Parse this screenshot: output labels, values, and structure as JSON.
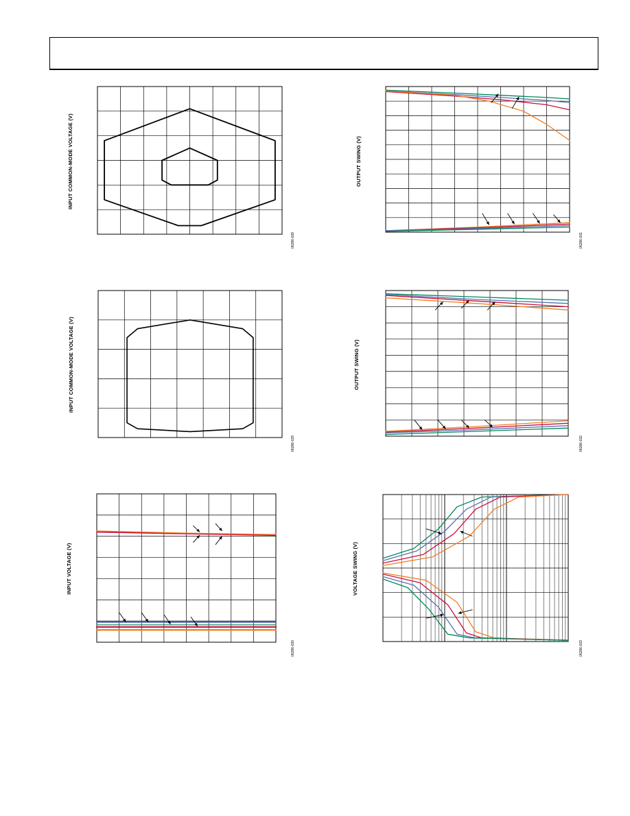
{
  "charts": [
    {
      "id": "c1",
      "type": "line",
      "ylabel": "INPUT COMMON-MODE VOLTAGE (V)",
      "fig_id": "06286-028",
      "grid": {
        "cols": 8,
        "rows": 6
      },
      "xlim": [
        0,
        8
      ],
      "ylim": [
        0,
        6
      ],
      "series": [
        {
          "color": "#000000",
          "width": 1.8,
          "points": [
            [
              0.3,
              3.8
            ],
            [
              4.0,
              5.1
            ],
            [
              7.7,
              3.8
            ],
            [
              7.7,
              1.4
            ],
            [
              4.5,
              0.35
            ],
            [
              3.5,
              0.35
            ],
            [
              0.3,
              1.4
            ],
            [
              0.3,
              3.8
            ]
          ]
        },
        {
          "color": "#000000",
          "width": 1.8,
          "points": [
            [
              2.8,
              3.0
            ],
            [
              4.0,
              3.5
            ],
            [
              5.2,
              3.0
            ],
            [
              5.2,
              2.2
            ],
            [
              4.8,
              2.0
            ],
            [
              3.2,
              2.0
            ],
            [
              2.8,
              2.2
            ],
            [
              2.8,
              3.0
            ]
          ]
        }
      ],
      "arrows": []
    },
    {
      "id": "c2",
      "type": "line",
      "ylabel": "OUTPUT SWING (V)",
      "fig_id": "06286-031",
      "grid": {
        "cols": 8,
        "rows": 10
      },
      "xlim": [
        0,
        8
      ],
      "ylim": [
        0,
        10
      ],
      "series": [
        {
          "color": "#00875a",
          "width": 1.3,
          "points": [
            [
              0,
              9.75
            ],
            [
              3,
              9.55
            ],
            [
              5,
              9.4
            ],
            [
              7,
              9.25
            ],
            [
              8,
              9.15
            ]
          ]
        },
        {
          "color": "#5b6fb0",
          "width": 1.3,
          "points": [
            [
              0,
              9.7
            ],
            [
              3,
              9.45
            ],
            [
              5,
              9.25
            ],
            [
              7,
              9.05
            ],
            [
              8,
              8.9
            ]
          ]
        },
        {
          "color": "#c8103c",
          "width": 1.3,
          "points": [
            [
              0,
              9.65
            ],
            [
              3,
              9.35
            ],
            [
              5,
              9.1
            ],
            [
              7,
              8.75
            ],
            [
              8,
              8.4
            ]
          ]
        },
        {
          "color": "#f07d22",
          "width": 1.3,
          "points": [
            [
              0,
              9.7
            ],
            [
              3,
              9.4
            ],
            [
              4.5,
              9.0
            ],
            [
              6,
              8.3
            ],
            [
              7,
              7.4
            ],
            [
              8,
              6.3
            ]
          ]
        },
        {
          "color": "#f07d22",
          "width": 1.3,
          "points": [
            [
              0,
              0.1
            ],
            [
              4,
              0.35
            ],
            [
              8,
              0.65
            ]
          ]
        },
        {
          "color": "#c8103c",
          "width": 1.3,
          "points": [
            [
              0,
              0.1
            ],
            [
              4,
              0.3
            ],
            [
              8,
              0.55
            ]
          ]
        },
        {
          "color": "#5b6fb0",
          "width": 1.3,
          "points": [
            [
              0,
              0.1
            ],
            [
              4,
              0.25
            ],
            [
              8,
              0.45
            ]
          ]
        },
        {
          "color": "#00875a",
          "width": 1.3,
          "points": [
            [
              0,
              0.05
            ],
            [
              4,
              0.2
            ],
            [
              8,
              0.35
            ]
          ]
        }
      ],
      "arrows": [
        [
          4.6,
          8.9,
          4.9,
          9.5
        ],
        [
          5.5,
          8.5,
          5.8,
          9.3
        ],
        [
          4.2,
          1.3,
          4.5,
          0.5
        ],
        [
          5.3,
          1.3,
          5.6,
          0.55
        ],
        [
          6.4,
          1.3,
          6.7,
          0.6
        ],
        [
          7.3,
          1.2,
          7.6,
          0.65
        ]
      ]
    },
    {
      "id": "c3",
      "type": "line",
      "ylabel": "INPUT COMMON-MODE VOLTAGE (V)",
      "fig_id": "06286-029",
      "grid": {
        "cols": 7,
        "rows": 5
      },
      "xlim": [
        0,
        7
      ],
      "ylim": [
        0,
        5
      ],
      "series": [
        {
          "color": "#000000",
          "width": 1.6,
          "points": [
            [
              1.1,
              3.4
            ],
            [
              1.5,
              3.7
            ],
            [
              3.5,
              4.0
            ],
            [
              5.5,
              3.7
            ],
            [
              5.9,
              3.4
            ],
            [
              5.9,
              0.5
            ],
            [
              5.5,
              0.3
            ],
            [
              3.5,
              0.2
            ],
            [
              1.5,
              0.3
            ],
            [
              1.1,
              0.5
            ],
            [
              1.1,
              3.4
            ]
          ]
        }
      ],
      "arrows": []
    },
    {
      "id": "c4",
      "type": "line",
      "ylabel": "OUTPUT SWING (V)",
      "fig_id": "06286-032",
      "grid": {
        "cols": 7,
        "rows": 9
      },
      "xlim": [
        0,
        7
      ],
      "ylim": [
        0,
        9
      ],
      "series": [
        {
          "color": "#00875a",
          "width": 1.3,
          "points": [
            [
              0,
              8.8
            ],
            [
              3.5,
              8.6
            ],
            [
              7,
              8.4
            ]
          ]
        },
        {
          "color": "#5b6fb0",
          "width": 1.3,
          "points": [
            [
              0,
              8.75
            ],
            [
              3.5,
              8.45
            ],
            [
              7,
              8.2
            ]
          ]
        },
        {
          "color": "#c8103c",
          "width": 1.3,
          "points": [
            [
              0,
              8.7
            ],
            [
              3.5,
              8.35
            ],
            [
              7,
              8.0
            ]
          ]
        },
        {
          "color": "#f07d22",
          "width": 1.3,
          "points": [
            [
              0,
              8.55
            ],
            [
              3.5,
              8.2
            ],
            [
              7,
              7.8
            ]
          ]
        },
        {
          "color": "#f07d22",
          "width": 1.3,
          "points": [
            [
              0,
              0.3
            ],
            [
              3.5,
              0.6
            ],
            [
              7,
              0.95
            ]
          ]
        },
        {
          "color": "#c8103c",
          "width": 1.3,
          "points": [
            [
              0,
              0.25
            ],
            [
              3.5,
              0.5
            ],
            [
              7,
              0.8
            ]
          ]
        },
        {
          "color": "#5b6fb0",
          "width": 1.3,
          "points": [
            [
              0,
              0.2
            ],
            [
              3.5,
              0.4
            ],
            [
              7,
              0.65
            ]
          ]
        },
        {
          "color": "#00875a",
          "width": 1.3,
          "points": [
            [
              0,
              0.1
            ],
            [
              3.5,
              0.3
            ],
            [
              7,
              0.5
            ]
          ]
        }
      ],
      "arrows": [
        [
          1.9,
          7.8,
          2.2,
          8.3
        ],
        [
          2.9,
          7.9,
          3.2,
          8.4
        ],
        [
          3.9,
          7.8,
          4.2,
          8.3
        ],
        [
          1.1,
          1.0,
          1.4,
          0.4
        ],
        [
          2.0,
          1.0,
          2.3,
          0.45
        ],
        [
          2.9,
          1.0,
          3.2,
          0.5
        ],
        [
          3.8,
          1.0,
          4.1,
          0.55
        ]
      ]
    },
    {
      "id": "c5",
      "type": "line",
      "ylabel": "INPUT VOLTAGE (V)",
      "fig_id": "06286-030",
      "grid": {
        "cols": 8,
        "rows": 7
      },
      "xlim": [
        0,
        8
      ],
      "ylim": [
        0,
        7
      ],
      "series": [
        {
          "color": "#c8103c",
          "width": 1.8,
          "points": [
            [
              0,
              5.2
            ],
            [
              4,
              5.12
            ],
            [
              8,
              5.05
            ]
          ]
        },
        {
          "color": "#f07d22",
          "width": 1.2,
          "points": [
            [
              0,
              5.25
            ],
            [
              4,
              5.15
            ],
            [
              8,
              5.08
            ]
          ]
        },
        {
          "color": "#5b6fb0",
          "width": 2.2,
          "points": [
            [
              0,
              0.95
            ],
            [
              8,
              0.95
            ]
          ]
        },
        {
          "color": "#00875a",
          "width": 1.2,
          "points": [
            [
              0,
              0.82
            ],
            [
              8,
              0.82
            ]
          ]
        },
        {
          "color": "#c8103c",
          "width": 2.2,
          "points": [
            [
              0,
              0.72
            ],
            [
              8,
              0.72
            ]
          ]
        },
        {
          "color": "#f07d22",
          "width": 2.2,
          "points": [
            [
              0,
              0.58
            ],
            [
              8,
              0.58
            ]
          ]
        }
      ],
      "arrows": [
        [
          4.3,
          5.5,
          4.6,
          5.2
        ],
        [
          5.3,
          5.6,
          5.6,
          5.25
        ],
        [
          4.3,
          4.7,
          4.6,
          5.05
        ],
        [
          5.3,
          4.6,
          5.6,
          5.0
        ],
        [
          1.0,
          1.4,
          1.3,
          0.95
        ],
        [
          2.0,
          1.4,
          2.3,
          0.95
        ],
        [
          3.0,
          1.3,
          3.3,
          0.85
        ],
        [
          4.2,
          1.2,
          4.5,
          0.75
        ]
      ]
    },
    {
      "id": "c6",
      "type": "line",
      "ylabel": "VOLTAGE SWING (V)",
      "fig_id": "06286-033",
      "grid": {
        "cols": 0,
        "rows": 6,
        "xlog": true,
        "decades": 3
      },
      "xlim": [
        0,
        3
      ],
      "ylim": [
        0,
        6
      ],
      "series": [
        {
          "color": "#00875a",
          "width": 1.3,
          "points": [
            [
              0,
              3.4
            ],
            [
              0.5,
              3.8
            ],
            [
              0.9,
              4.6
            ],
            [
              1.2,
              5.5
            ],
            [
              1.6,
              5.9
            ],
            [
              3,
              6.0
            ]
          ]
        },
        {
          "color": "#5b6fb0",
          "width": 1.3,
          "points": [
            [
              0,
              3.3
            ],
            [
              0.55,
              3.7
            ],
            [
              1.0,
              4.5
            ],
            [
              1.35,
              5.4
            ],
            [
              1.75,
              5.9
            ],
            [
              3,
              6.0
            ]
          ]
        },
        {
          "color": "#c8103c",
          "width": 1.3,
          "points": [
            [
              0,
              3.2
            ],
            [
              0.65,
              3.55
            ],
            [
              1.15,
              4.4
            ],
            [
              1.5,
              5.4
            ],
            [
              1.9,
              5.9
            ],
            [
              3,
              6.0
            ]
          ]
        },
        {
          "color": "#f07d22",
          "width": 1.3,
          "points": [
            [
              0,
              3.1
            ],
            [
              0.8,
              3.45
            ],
            [
              1.4,
              4.3
            ],
            [
              1.8,
              5.4
            ],
            [
              2.2,
              5.9
            ],
            [
              3,
              6.0
            ]
          ]
        },
        {
          "color": "#f07d22",
          "width": 1.3,
          "points": [
            [
              0,
              2.8
            ],
            [
              0.7,
              2.5
            ],
            [
              1.2,
              1.6
            ],
            [
              1.5,
              0.4
            ],
            [
              1.8,
              0.15
            ],
            [
              3,
              0.05
            ]
          ]
        },
        {
          "color": "#c8103c",
          "width": 1.3,
          "points": [
            [
              0,
              2.75
            ],
            [
              0.6,
              2.4
            ],
            [
              1.05,
              1.5
            ],
            [
              1.35,
              0.35
            ],
            [
              1.6,
              0.15
            ],
            [
              3,
              0.05
            ]
          ]
        },
        {
          "color": "#5b6fb0",
          "width": 1.3,
          "points": [
            [
              0,
              2.65
            ],
            [
              0.5,
              2.3
            ],
            [
              0.9,
              1.4
            ],
            [
              1.2,
              0.3
            ],
            [
              1.5,
              0.15
            ],
            [
              3,
              0.05
            ]
          ]
        },
        {
          "color": "#00875a",
          "width": 1.3,
          "points": [
            [
              0,
              2.55
            ],
            [
              0.4,
              2.2
            ],
            [
              0.75,
              1.3
            ],
            [
              1.05,
              0.3
            ],
            [
              1.4,
              0.15
            ],
            [
              3,
              0.05
            ]
          ]
        }
      ],
      "arrows": [
        [
          0.7,
          4.6,
          0.95,
          4.4
        ],
        [
          1.45,
          4.3,
          1.25,
          4.5
        ],
        [
          0.7,
          0.95,
          0.98,
          1.1
        ],
        [
          1.45,
          1.3,
          1.22,
          1.15
        ]
      ]
    }
  ]
}
